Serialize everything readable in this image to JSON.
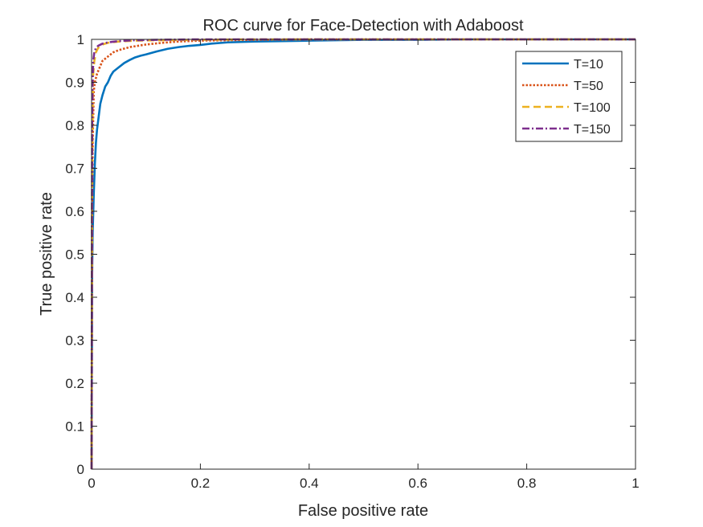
{
  "chart_data": {
    "type": "line",
    "title": "ROC curve for Face-Detection with Adaboost",
    "xlabel": "False positive rate",
    "ylabel": "True positive rate",
    "xlim": [
      0,
      1
    ],
    "ylim": [
      0,
      1
    ],
    "xticks": [
      "0",
      "0.2",
      "0.4",
      "0.6",
      "0.8",
      "1"
    ],
    "yticks": [
      "0",
      "0.1",
      "0.2",
      "0.3",
      "0.4",
      "0.5",
      "0.6",
      "0.7",
      "0.8",
      "0.9",
      "1"
    ],
    "grid": false,
    "legend_position": "top-right",
    "series": [
      {
        "name": "T=10",
        "color": "#0072bd",
        "style": "solid",
        "x": [
          0,
          0.001,
          0.002,
          0.004,
          0.006,
          0.008,
          0.01,
          0.013,
          0.016,
          0.02,
          0.025,
          0.03,
          0.035,
          0.04,
          0.05,
          0.06,
          0.07,
          0.08,
          0.09,
          0.1,
          0.12,
          0.14,
          0.16,
          0.18,
          0.2,
          0.22,
          0.25,
          0.3,
          0.35,
          0.4,
          0.45,
          0.5,
          0.6,
          0.7,
          0.8,
          1.0
        ],
        "y": [
          0,
          0.45,
          0.55,
          0.64,
          0.71,
          0.76,
          0.79,
          0.82,
          0.85,
          0.87,
          0.89,
          0.9,
          0.915,
          0.925,
          0.935,
          0.945,
          0.952,
          0.958,
          0.962,
          0.965,
          0.972,
          0.978,
          0.982,
          0.985,
          0.987,
          0.99,
          0.993,
          0.995,
          0.996,
          0.997,
          0.998,
          0.999,
          0.999,
          1.0,
          1.0,
          1.0
        ]
      },
      {
        "name": "T=50",
        "color": "#d95319",
        "style": "dotted",
        "x": [
          0,
          0.001,
          0.002,
          0.004,
          0.006,
          0.01,
          0.015,
          0.02,
          0.03,
          0.04,
          0.05,
          0.07,
          0.1,
          0.13,
          0.16,
          0.2,
          0.3,
          0.4,
          0.5,
          0.7,
          1.0
        ],
        "y": [
          0,
          0.6,
          0.75,
          0.88,
          0.9,
          0.92,
          0.935,
          0.95,
          0.96,
          0.97,
          0.975,
          0.982,
          0.988,
          0.992,
          0.995,
          0.997,
          0.999,
          1.0,
          1.0,
          1.0,
          1.0
        ]
      },
      {
        "name": "T=100",
        "color": "#edb120",
        "style": "dashed",
        "x": [
          0,
          0.001,
          0.002,
          0.003,
          0.005,
          0.008,
          0.012,
          0.02,
          0.03,
          0.05,
          0.08,
          0.12,
          0.2,
          0.3,
          0.5,
          1.0
        ],
        "y": [
          0,
          0.7,
          0.85,
          0.92,
          0.95,
          0.97,
          0.98,
          0.988,
          0.992,
          0.995,
          0.997,
          0.998,
          0.999,
          1.0,
          1.0,
          1.0
        ]
      },
      {
        "name": "T=150",
        "color": "#7e2f8e",
        "style": "dashdot",
        "x": [
          0,
          0.001,
          0.002,
          0.003,
          0.005,
          0.008,
          0.012,
          0.02,
          0.03,
          0.05,
          0.08,
          0.12,
          0.2,
          0.3,
          0.5,
          1.0
        ],
        "y": [
          0,
          0.8,
          0.9,
          0.95,
          0.97,
          0.98,
          0.985,
          0.99,
          0.993,
          0.996,
          0.998,
          0.999,
          1.0,
          1.0,
          1.0,
          1.0
        ]
      }
    ]
  }
}
